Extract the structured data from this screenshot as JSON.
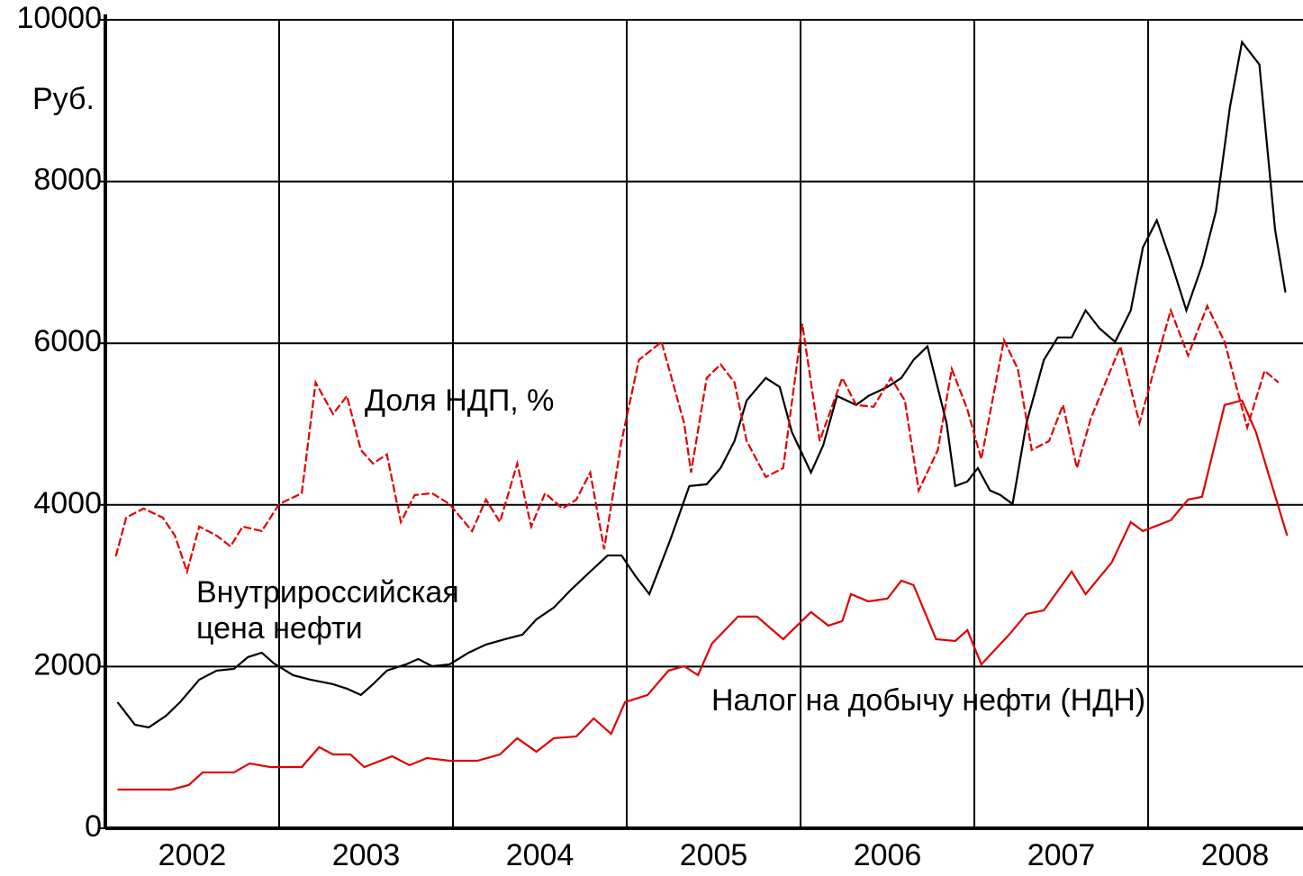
{
  "chart_data": {
    "type": "line",
    "y_label": "Руб.",
    "xlim": [
      2002,
      2008.891
    ],
    "xticks": [
      {
        "value": 2002.5,
        "label": "2002"
      },
      {
        "value": 2003.5,
        "label": "2003"
      },
      {
        "value": 2004.5,
        "label": "2004"
      },
      {
        "value": 2005.5,
        "label": "2005"
      },
      {
        "value": 2006.5,
        "label": "2006"
      },
      {
        "value": 2007.5,
        "label": "2007"
      },
      {
        "value": 2008.5,
        "label": "2008"
      }
    ],
    "xgrid": [
      2003,
      2004,
      2005,
      2006,
      2007,
      2008
    ],
    "ylim": [
      0,
      10000
    ],
    "yticks": [
      0,
      2000,
      4000,
      6000,
      8000,
      10000
    ],
    "grid": true,
    "series": [
      {
        "color": "#000000",
        "dashed": false,
        "x": [
          2002.07,
          2002.17,
          2002.25,
          2002.35,
          2002.43,
          2002.54,
          2002.64,
          2002.74,
          2002.82,
          2002.9,
          2002.97,
          2003.08,
          2003.18,
          2003.31,
          2003.39,
          2003.47,
          2003.54,
          2003.62,
          2003.73,
          2003.8,
          2003.88,
          2003.98,
          2004.09,
          2004.19,
          2004.3,
          2004.4,
          2004.48,
          2004.58,
          2004.68,
          2004.79,
          2004.89,
          2004.97,
          2005.05,
          2005.13,
          2005.25,
          2005.36,
          2005.46,
          2005.54,
          2005.62,
          2005.69,
          2005.8,
          2005.88,
          2005.95,
          2006.06,
          2006.13,
          2006.21,
          2006.32,
          2006.39,
          2006.5,
          2006.58,
          2006.65,
          2006.73,
          2006.84,
          2006.89,
          2006.96,
          2007.02,
          2007.09,
          2007.15,
          2007.22,
          2007.3,
          2007.4,
          2007.48,
          2007.56,
          2007.64,
          2007.72,
          2007.81,
          2007.9,
          2007.97,
          2008.05,
          2008.13,
          2008.22,
          2008.31,
          2008.39,
          2008.47,
          2008.54,
          2008.64,
          2008.73,
          2008.79
        ],
        "values": [
          1560,
          1281,
          1248,
          1393,
          1560,
          1838,
          1950,
          1972,
          2117,
          2172,
          2039,
          1894,
          1838,
          1782,
          1727,
          1649,
          1782,
          1950,
          2027,
          2094,
          2005,
          2027,
          2172,
          2273,
          2339,
          2395,
          2584,
          2729,
          2952,
          3175,
          3375,
          3375,
          3119,
          2896,
          3565,
          4233,
          4255,
          4456,
          4790,
          5292,
          5570,
          5459,
          4902,
          4400,
          4735,
          5347,
          5236,
          5347,
          5459,
          5570,
          5793,
          5960,
          5013,
          4233,
          4289,
          4456,
          4178,
          4122,
          4010,
          5013,
          5793,
          6071,
          6071,
          6406,
          6183,
          6016,
          6406,
          7185,
          7520,
          7018,
          6406,
          6963,
          7631,
          8912,
          9725,
          9447,
          7408,
          6628
        ]
      },
      {
        "color": "#e00000",
        "dashed": true,
        "x": [
          2002.06,
          2002.12,
          2002.22,
          2002.33,
          2002.4,
          2002.47,
          2002.54,
          2002.64,
          2002.72,
          2002.79,
          2002.9,
          2003.0,
          2003.13,
          2003.21,
          2003.31,
          2003.39,
          2003.47,
          2003.54,
          2003.62,
          2003.7,
          2003.78,
          2003.88,
          2003.98,
          2004.11,
          2004.19,
          2004.27,
          2004.37,
          2004.45,
          2004.53,
          2004.63,
          2004.71,
          2004.79,
          2004.87,
          2004.97,
          2005.07,
          2005.2,
          2005.33,
          2005.37,
          2005.46,
          2005.54,
          2005.62,
          2005.69,
          2005.8,
          2005.9,
          2006.01,
          2006.11,
          2006.24,
          2006.32,
          2006.42,
          2006.52,
          2006.6,
          2006.68,
          2006.79,
          2006.87,
          2006.96,
          2007.04,
          2007.17,
          2007.25,
          2007.33,
          2007.43,
          2007.51,
          2007.59,
          2007.67,
          2007.84,
          2007.95,
          2008.05,
          2008.13,
          2008.23,
          2008.34,
          2008.44,
          2008.57,
          2008.67,
          2008.75
        ],
        "values": [
          3364,
          3843,
          3955,
          3843,
          3620,
          3175,
          3732,
          3620,
          3487,
          3732,
          3676,
          4010,
          4144,
          5514,
          5124,
          5347,
          4679,
          4512,
          4624,
          3788,
          4122,
          4144,
          4010,
          3676,
          4066,
          3788,
          4512,
          3732,
          4144,
          3955,
          4066,
          4400,
          3453,
          4790,
          5793,
          6016,
          5013,
          4400,
          5570,
          5737,
          5514,
          4790,
          4345,
          4456,
          6238,
          4790,
          5570,
          5236,
          5214,
          5570,
          5292,
          4178,
          4679,
          5681,
          5180,
          4567,
          6038,
          5681,
          4679,
          4790,
          5236,
          4456,
          5069,
          5960,
          5013,
          5793,
          6406,
          5848,
          6461,
          6016,
          4957,
          5659,
          5514
        ]
      },
      {
        "color": "#e00000",
        "dashed": false,
        "x": [
          2002.07,
          2002.38,
          2002.48,
          2002.56,
          2002.74,
          2002.83,
          2002.95,
          2003.13,
          2003.23,
          2003.31,
          2003.41,
          2003.49,
          2003.65,
          2003.75,
          2003.85,
          2003.98,
          2004.14,
          2004.27,
          2004.37,
          2004.48,
          2004.58,
          2004.71,
          2004.81,
          2004.91,
          2004.99,
          2005.12,
          2005.24,
          2005.33,
          2005.41,
          2005.49,
          2005.64,
          2005.75,
          2005.9,
          2006.06,
          2006.16,
          2006.24,
          2006.29,
          2006.39,
          2006.5,
          2006.58,
          2006.65,
          2006.78,
          2006.89,
          2006.96,
          2007.04,
          2007.2,
          2007.3,
          2007.4,
          2007.56,
          2007.64,
          2007.79,
          2007.9,
          2007.97,
          2008.13,
          2008.23,
          2008.31,
          2008.44,
          2008.54,
          2008.62,
          2008.69,
          2008.8
        ],
        "values": [
          479,
          479,
          535,
          691,
          691,
          802,
          757,
          757,
          1003,
          913,
          913,
          757,
          891,
          780,
          869,
          835,
          835,
          913,
          1114,
          947,
          1114,
          1136,
          1359,
          1169,
          1560,
          1649,
          1950,
          2005,
          1894,
          2284,
          2618,
          2618,
          2339,
          2674,
          2507,
          2562,
          2896,
          2807,
          2841,
          3063,
          3008,
          2339,
          2317,
          2451,
          2027,
          2395,
          2651,
          2696,
          3175,
          2896,
          3286,
          3787,
          3676,
          3810,
          4066,
          4100,
          5236,
          5292,
          4902,
          4400,
          3620
        ]
      }
    ],
    "annotations": [
      {
        "text": [
          "Доля НДП, %"
        ]
      },
      {
        "text": [
          "Внутрироссийская",
          "цена нефти"
        ]
      },
      {
        "text": [
          "Налог на добычу нефти (НДН)"
        ]
      }
    ]
  }
}
